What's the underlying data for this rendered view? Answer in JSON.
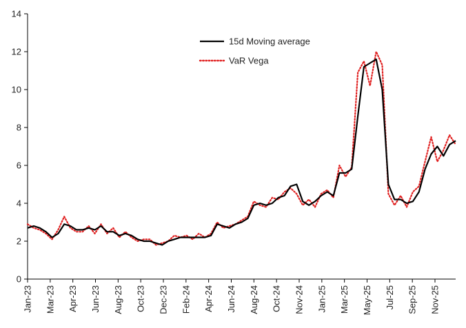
{
  "chart_data": {
    "type": "line",
    "title": "",
    "xlabel": "",
    "ylabel": "",
    "ylim": [
      0,
      14
    ],
    "yticks": [
      0,
      2,
      4,
      6,
      8,
      10,
      12,
      14
    ],
    "x_range": [
      "2023-01",
      "2025-12"
    ],
    "x_ticks": [
      "Jan-23",
      "Mar-23",
      "Apr-23",
      "Jun-23",
      "Aug-23",
      "Oct-23",
      "Dec-23",
      "Feb-24",
      "Apr-24",
      "Jun-24",
      "Aug-24",
      "Oct-24",
      "Nov-24",
      "Jan-25",
      "Mar-25",
      "May-25",
      "Jul-25",
      "Sep-25",
      "Nov-25"
    ],
    "legend_position": "top-center",
    "grid": false,
    "series": [
      {
        "name": "15d Moving average",
        "color": "#000000",
        "style": "solid",
        "values": [
          2.7,
          2.8,
          2.7,
          2.5,
          2.2,
          2.4,
          2.9,
          2.8,
          2.6,
          2.6,
          2.7,
          2.6,
          2.8,
          2.5,
          2.5,
          2.3,
          2.4,
          2.3,
          2.1,
          2.0,
          2.0,
          1.9,
          1.8,
          2.0,
          2.1,
          2.2,
          2.2,
          2.2,
          2.2,
          2.2,
          2.3,
          2.9,
          2.8,
          2.7,
          2.9,
          3.0,
          3.2,
          3.9,
          4.0,
          3.9,
          4.0,
          4.3,
          4.4,
          4.9,
          5.0,
          4.1,
          3.9,
          4.1,
          4.4,
          4.6,
          4.4,
          5.6,
          5.6,
          5.8,
          8.6,
          11.2,
          11.4,
          11.6,
          10.0,
          5.0,
          4.2,
          4.2,
          4.0,
          4.1,
          4.6,
          5.8,
          6.6,
          7.0,
          6.5,
          7.1,
          7.3
        ]
      },
      {
        "name": "VaR Vega",
        "color": "#e02020",
        "style": "dotted",
        "values": [
          2.9,
          2.7,
          2.6,
          2.4,
          2.1,
          2.6,
          3.3,
          2.7,
          2.5,
          2.5,
          2.8,
          2.4,
          2.9,
          2.4,
          2.7,
          2.2,
          2.5,
          2.2,
          2.0,
          2.1,
          2.1,
          1.8,
          1.9,
          2.0,
          2.3,
          2.2,
          2.3,
          2.1,
          2.4,
          2.2,
          2.4,
          3.0,
          2.7,
          2.8,
          2.9,
          3.1,
          3.3,
          4.1,
          3.9,
          3.8,
          4.3,
          4.2,
          4.6,
          4.8,
          4.5,
          3.9,
          4.2,
          3.8,
          4.5,
          4.7,
          4.3,
          6.0,
          5.4,
          5.9,
          10.9,
          11.5,
          10.2,
          12.0,
          11.3,
          4.5,
          3.9,
          4.4,
          3.8,
          4.6,
          4.9,
          6.2,
          7.5,
          6.2,
          6.8,
          7.6,
          7.1
        ]
      }
    ]
  }
}
